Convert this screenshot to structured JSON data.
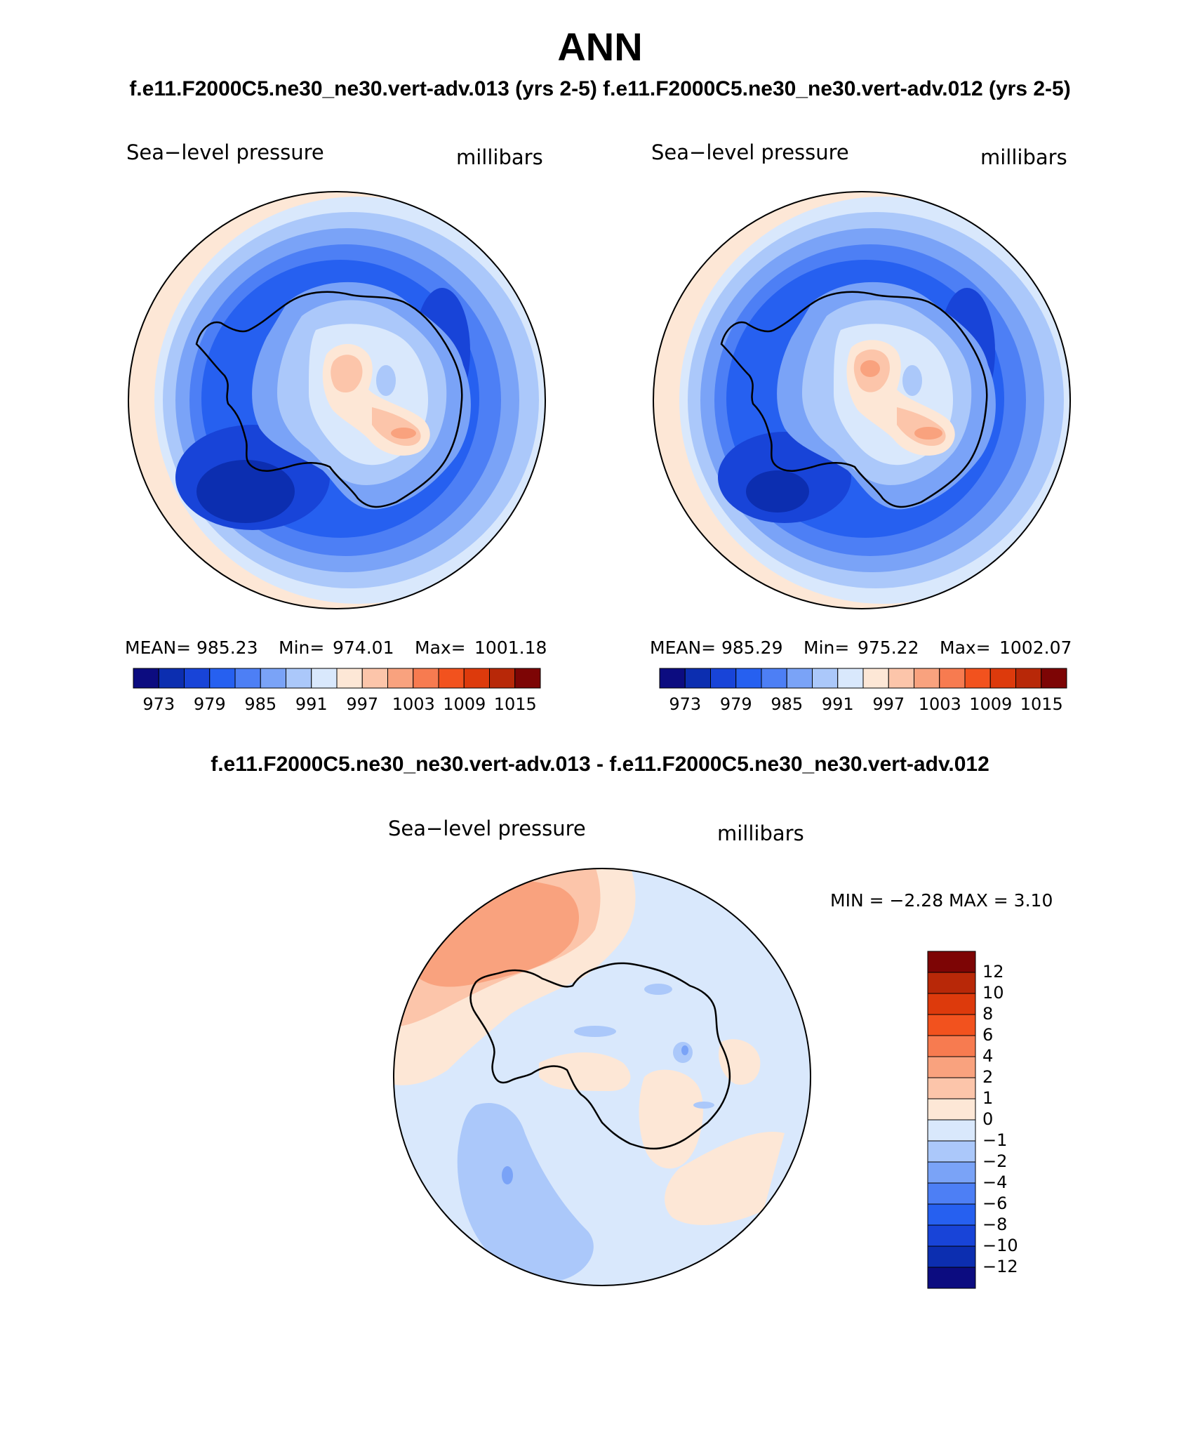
{
  "header": {
    "title": "ANN",
    "case_titles": "f.e11.F2000C5.ne30_ne30.vert-adv.013 (yrs 2-5)  f.e11.F2000C5.ne30_ne30.vert-adv.012 (yrs 2-5)",
    "diff_title": "f.e11.F2000C5.ne30_ne30.vert-adv.013 - f.e11.F2000C5.ne30_ne30.vert-adv.012"
  },
  "panels": [
    {
      "variable": "Sea−level pressure",
      "units": "millibars",
      "mean_label": "MEAN=",
      "mean": "985.23",
      "min_label": "Min=",
      "min": "974.01",
      "max_label": "Max=",
      "max": "1001.18"
    },
    {
      "variable": "Sea−level pressure",
      "units": "millibars",
      "mean_label": "MEAN=",
      "mean": "985.29",
      "min_label": "Min=",
      "min": "975.22",
      "max_label": "Max=",
      "max": "1002.07"
    }
  ],
  "diff_panel": {
    "variable": "Sea−level pressure",
    "units": "millibars",
    "minmax_text": "MIN =   −2.28 MAX =    3.10"
  },
  "colorbar_top": {
    "colors": [
      "#0c0c80",
      "#0c2eb0",
      "#1844d8",
      "#2660f0",
      "#4d7ff5",
      "#7aa3f7",
      "#abc8fa",
      "#d9e8fc",
      "#fde7d6",
      "#fcc5aa",
      "#f9a27e",
      "#f77b50",
      "#f2521e",
      "#dd3a0c",
      "#b82808",
      "#7d0505"
    ],
    "tick_labels": [
      "973",
      "979",
      "985",
      "991",
      "997",
      "1003",
      "1009",
      "1015"
    ]
  },
  "colorbar_diff": {
    "colors": [
      "#7d0505",
      "#b82808",
      "#dd3a0c",
      "#f2521e",
      "#f77b50",
      "#f9a27e",
      "#fcc5aa",
      "#fde7d6",
      "#d9e8fc",
      "#abc8fa",
      "#7aa3f7",
      "#4d7ff5",
      "#2660f0",
      "#1844d8",
      "#0c2eb0",
      "#0c0c80"
    ],
    "tick_labels": [
      "12",
      "10",
      "8",
      "6",
      "4",
      "2",
      "1",
      "0",
      "−1",
      "−2",
      "−4",
      "−6",
      "−8",
      "−10",
      "−12"
    ]
  }
}
